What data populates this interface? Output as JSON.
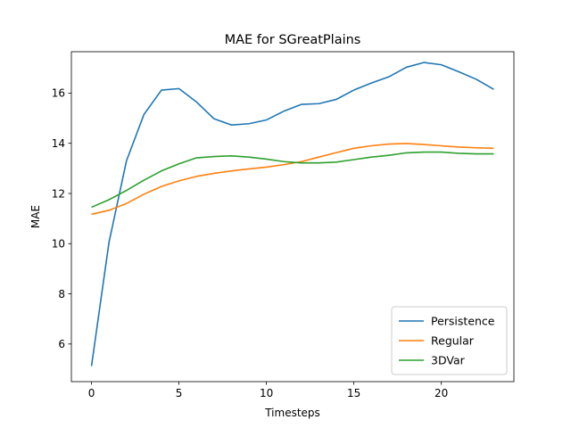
{
  "chart_data": {
    "type": "line",
    "title": "MAE for SGreatPlains",
    "xlabel": "Timesteps",
    "ylabel": "MAE",
    "xlim": [
      -1.15,
      24.15
    ],
    "ylim": [
      4.5,
      17.65
    ],
    "xticks": [
      0,
      5,
      10,
      15,
      20
    ],
    "yticks": [
      6,
      8,
      10,
      12,
      14,
      16
    ],
    "grid": false,
    "legend_position": "lower-right",
    "x": [
      0,
      1,
      2,
      3,
      4,
      5,
      6,
      7,
      8,
      9,
      10,
      11,
      12,
      13,
      14,
      15,
      16,
      17,
      18,
      19,
      20,
      21,
      22,
      23
    ],
    "series": [
      {
        "name": "Persistence",
        "color": "#1f77b4",
        "values": [
          5.12,
          10.05,
          13.3,
          15.15,
          16.12,
          16.18,
          15.65,
          14.98,
          14.73,
          14.78,
          14.93,
          15.28,
          15.55,
          15.58,
          15.75,
          16.12,
          16.4,
          16.65,
          17.03,
          17.22,
          17.13,
          16.85,
          16.55,
          16.15
        ]
      },
      {
        "name": "Regular",
        "color": "#ff7f0e",
        "values": [
          11.17,
          11.33,
          11.6,
          11.97,
          12.28,
          12.5,
          12.68,
          12.8,
          12.9,
          12.98,
          13.05,
          13.15,
          13.27,
          13.45,
          13.63,
          13.8,
          13.9,
          13.97,
          13.99,
          13.95,
          13.9,
          13.85,
          13.82,
          13.8
        ]
      },
      {
        "name": "3DVar",
        "color": "#2ca02c",
        "values": [
          11.45,
          11.75,
          12.12,
          12.53,
          12.9,
          13.18,
          13.42,
          13.47,
          13.5,
          13.45,
          13.37,
          13.27,
          13.22,
          13.22,
          13.25,
          13.35,
          13.45,
          13.52,
          13.62,
          13.65,
          13.65,
          13.6,
          13.58,
          13.58
        ]
      }
    ]
  }
}
